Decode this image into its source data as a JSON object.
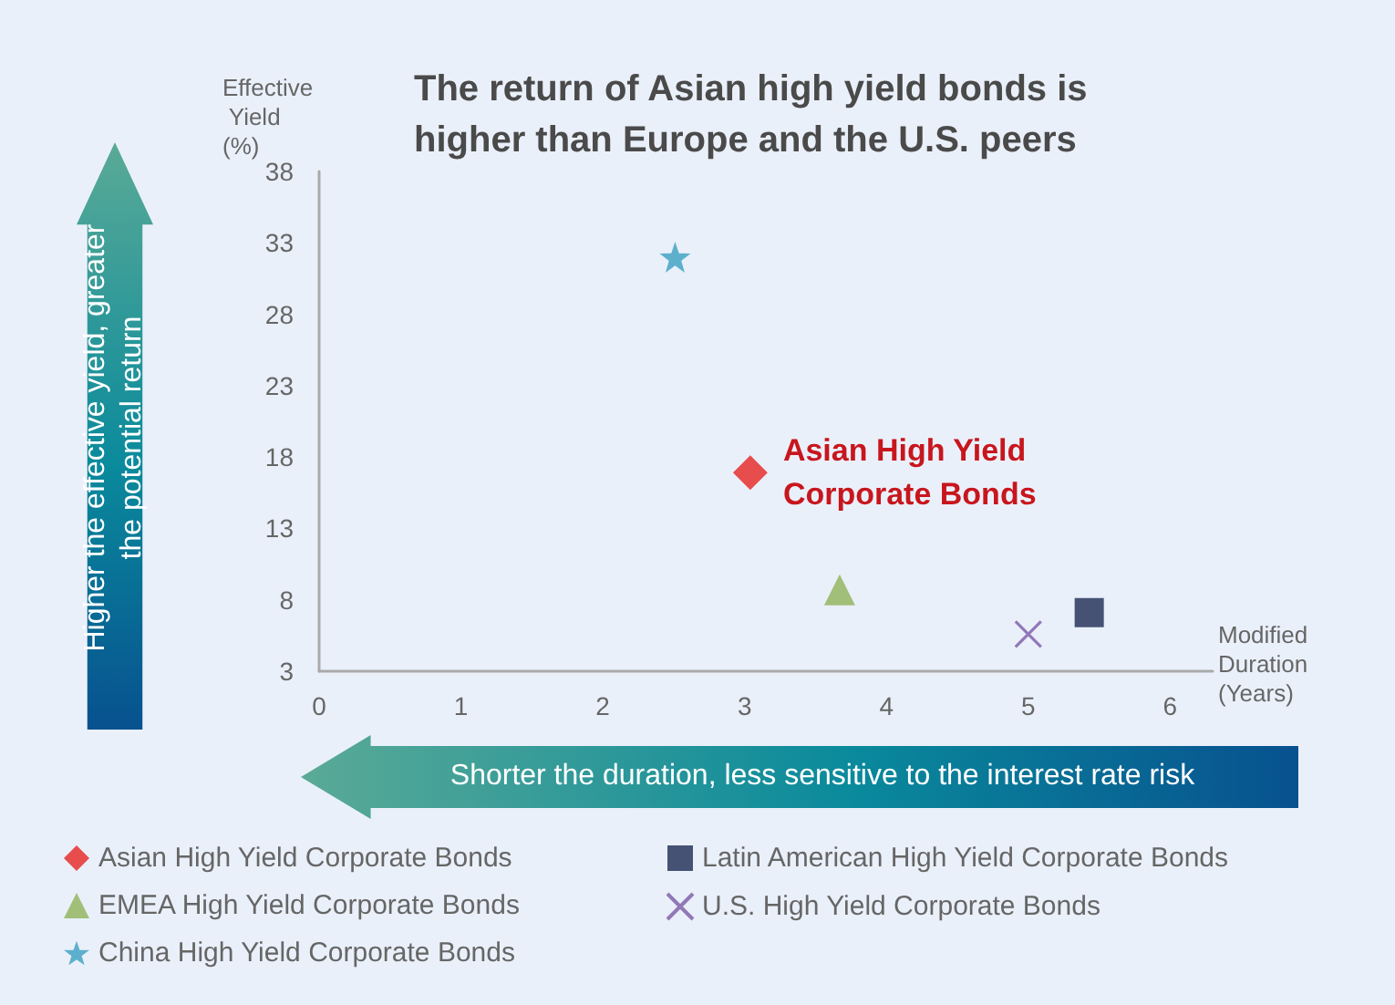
{
  "chart_data": {
    "type": "scatter",
    "title": "The return of Asian high yield bonds is higher than Europe and the U.S. peers",
    "xlabel": "Modified Duration (Years)",
    "ylabel": "Effective Yield (%)",
    "annotations": [
      "Higher the effective yield, greater the potential return",
      "Shorter the duration, less sensitive to the interest rate risk",
      {
        "text": "Asian High Yield Corporate Bonds",
        "x": 3.04,
        "y": 16.9
      }
    ],
    "xlim": [
      0,
      6.3
    ],
    "xticks": [
      0,
      1,
      2,
      3,
      4,
      5,
      6
    ],
    "ylim": [
      3,
      38
    ],
    "yticks": [
      3,
      8,
      13,
      18,
      23,
      28,
      33,
      38
    ],
    "grid": false,
    "legend": "bottom",
    "series": [
      {
        "name": "Asian High Yield Corporate Bonds",
        "color": "#e52420",
        "marker": "diamond",
        "x": [
          3.04
        ],
        "values": [
          16.9
        ]
      },
      {
        "name": "Latin American High Yield Corporate Bonds",
        "color": "#1b2a52",
        "marker": "square",
        "x": [
          5.43
        ],
        "values": [
          7.1
        ]
      },
      {
        "name": "EMEA High Yield Corporate Bonds",
        "color": "#8fb358",
        "marker": "triangle",
        "x": [
          3.67
        ],
        "values": [
          8.7
        ]
      },
      {
        "name": "U.S. High Yield Corporate Bonds",
        "color": "#7b5aa6",
        "marker": "cross",
        "x": [
          5.0
        ],
        "values": [
          5.6
        ]
      },
      {
        "name": "China High Yield Corporate Bonds",
        "color": "#3aa0c0",
        "marker": "star",
        "x": [
          2.51
        ],
        "values": [
          32.0
        ]
      }
    ]
  }
}
